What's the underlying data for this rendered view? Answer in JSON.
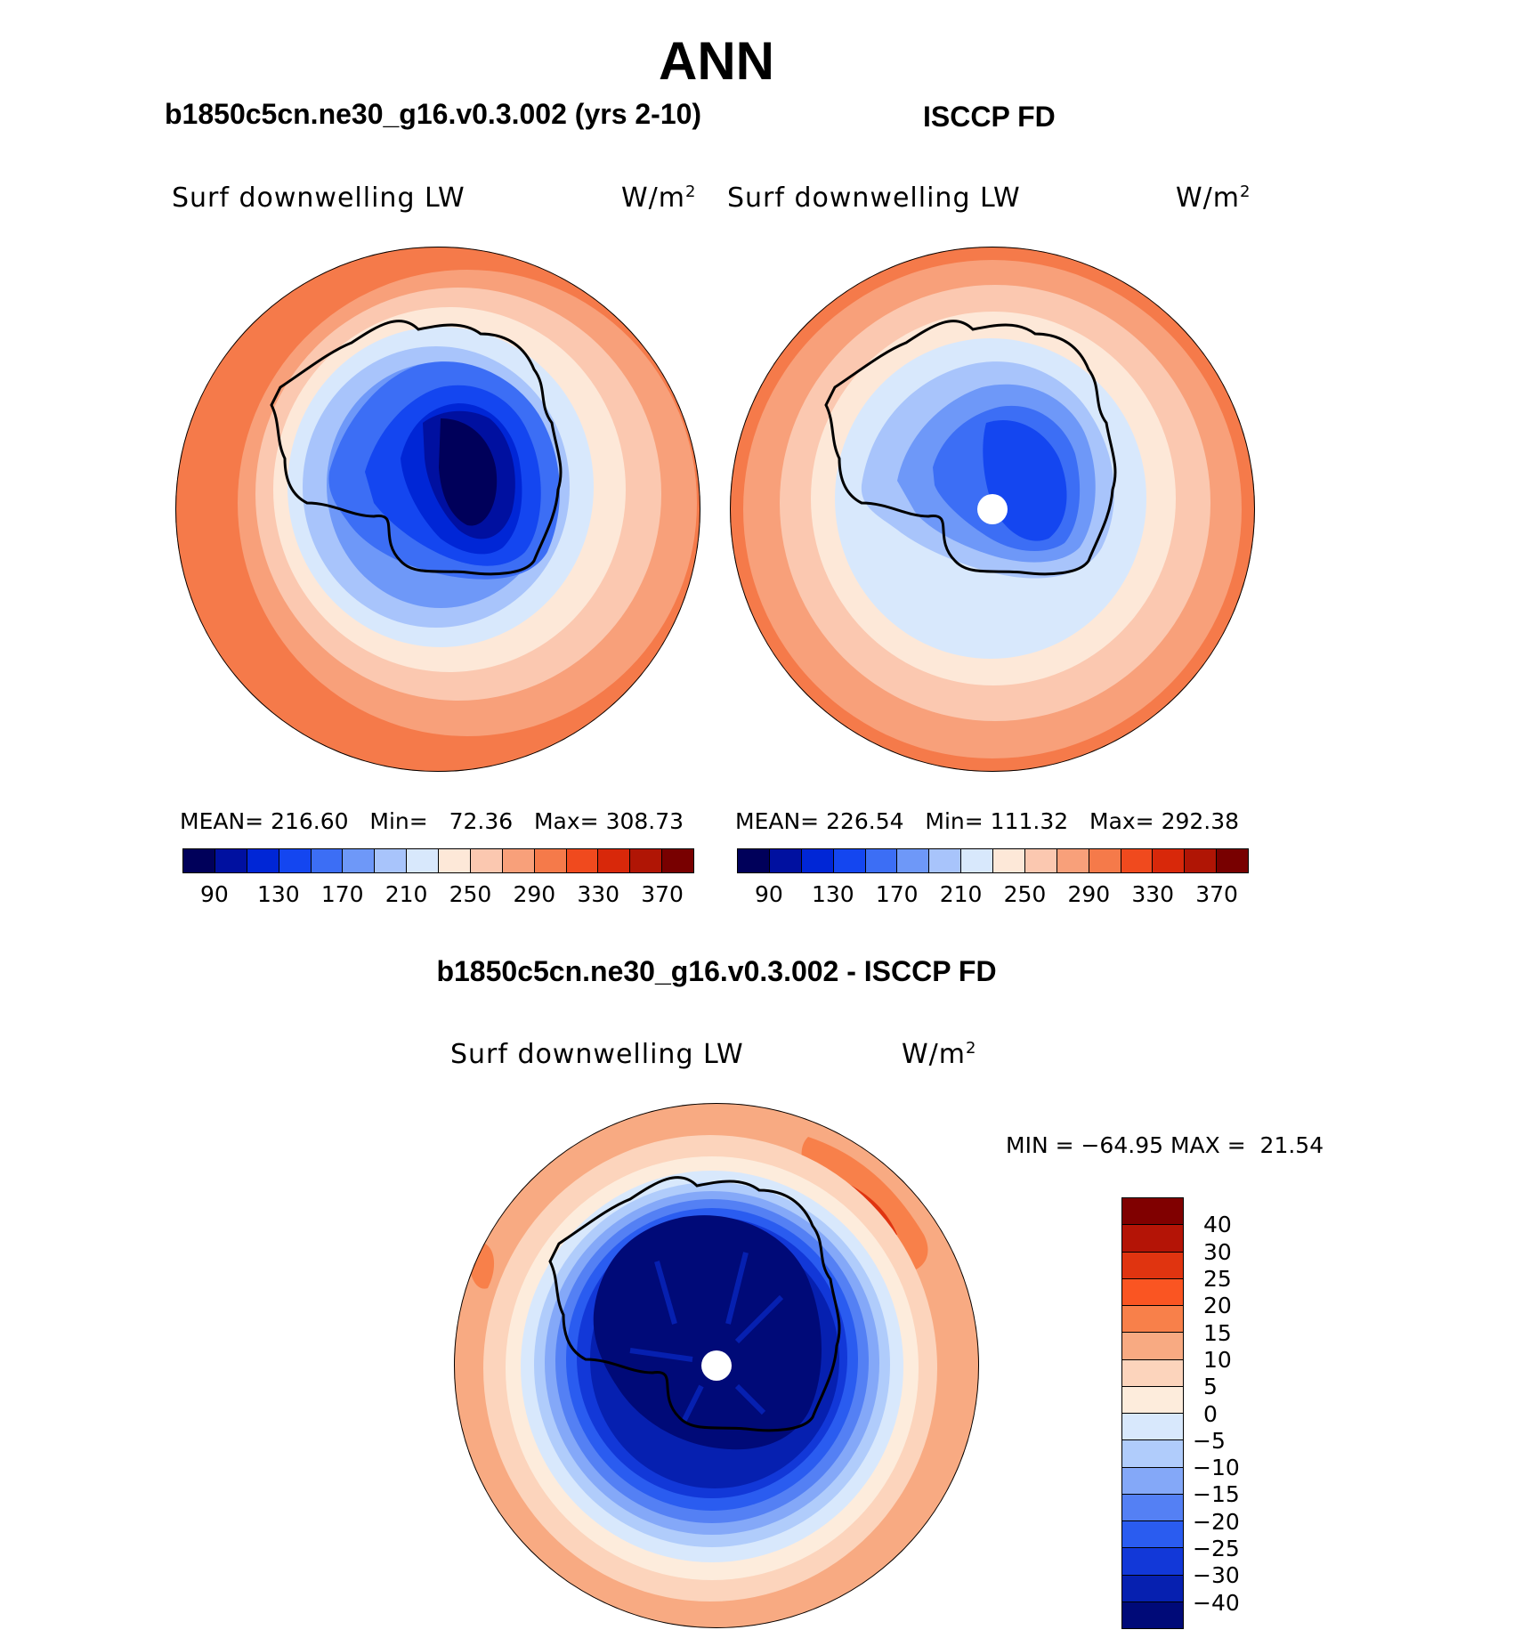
{
  "title": "ANN",
  "panels": [
    {
      "heading": "b1850c5cn.ne30_g16.v0.3.002 (yrs 2-10)",
      "variable": "Surf downwelling LW",
      "units": "W/m",
      "units_sup": "2",
      "stats": {
        "mean_label": "MEAN=",
        "mean": "216.60",
        "min_label": "Min=",
        "min": "72.36",
        "max_label": "Max=",
        "max": "308.73"
      }
    },
    {
      "heading": "ISCCP FD",
      "variable": "Surf downwelling LW",
      "units": "W/m",
      "units_sup": "2",
      "stats": {
        "mean_label": "MEAN=",
        "mean": "226.54",
        "min_label": "Min=",
        "min": "111.32",
        "max_label": "Max=",
        "max": "292.38"
      }
    }
  ],
  "diff_panel": {
    "heading": "b1850c5cn.ne30_g16.v0.3.002 - ISCCP FD",
    "variable": "Surf downwelling LW",
    "units": "W/m",
    "units_sup": "2",
    "minmax": "MIN = −64.95 MAX =  21.54"
  },
  "colorbar_top": {
    "labels": [
      "90",
      "130",
      "170",
      "210",
      "250",
      "290",
      "330",
      "370"
    ],
    "colors": [
      "#00005a",
      "#0010a0",
      "#0026d6",
      "#1446f0",
      "#3c6ef5",
      "#6e98f8",
      "#a8c4fb",
      "#d8e8fc",
      "#fde8d8",
      "#fbc8b0",
      "#f8a07a",
      "#f57a4a",
      "#f04a1e",
      "#d8280a",
      "#b01505",
      "#780000"
    ]
  },
  "colorbar_diff": {
    "labels": [
      "40",
      "30",
      "25",
      "20",
      "15",
      "10",
      "5",
      "0",
      "−5",
      "−10",
      "−15",
      "−20",
      "−25",
      "−30",
      "−40"
    ],
    "colors": [
      "#800000",
      "#b41406",
      "#e03410",
      "#fa5522",
      "#f8804a",
      "#f8aa82",
      "#fcd4bc",
      "#fdecdc",
      "#d8e8fc",
      "#b0ccfb",
      "#84a8f8",
      "#5480f4",
      "#2a5cf0",
      "#1238d8",
      "#0620b0",
      "#000a78"
    ]
  }
}
